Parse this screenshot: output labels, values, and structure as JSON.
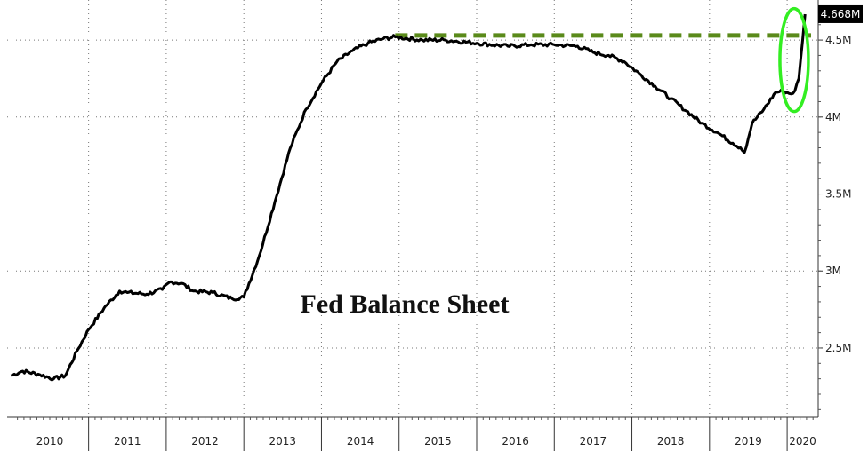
{
  "chart_data": {
    "type": "line",
    "title": "Fed Balance Sheet",
    "xlabel": "",
    "ylabel": "",
    "ylim": [
      2.05,
      4.76
    ],
    "y_ticks": [
      {
        "value": 2.5,
        "label": "2.5M"
      },
      {
        "value": 3.0,
        "label": "3M"
      },
      {
        "value": 3.5,
        "label": "3.5M"
      },
      {
        "value": 4.0,
        "label": "4M"
      },
      {
        "value": 4.5,
        "label": "4.5M"
      }
    ],
    "x_categories": [
      "2010",
      "2011",
      "2012",
      "2013",
      "2014",
      "2015",
      "2016",
      "2017",
      "2018",
      "2019",
      "2020"
    ],
    "last_value_label": "4.668M",
    "reference_level": 4.53,
    "reference_start": 2014.95,
    "highlight_center": [
      2020.09,
      4.37
    ],
    "series": [
      {
        "name": "",
        "x": [
          2010.0,
          2010.15,
          2010.35,
          2010.55,
          2010.7,
          2010.85,
          2011.0,
          2011.2,
          2011.4,
          2011.5,
          2011.75,
          2011.95,
          2012.05,
          2012.2,
          2012.35,
          2012.6,
          2012.85,
          2013.0,
          2013.2,
          2013.4,
          2013.6,
          2013.8,
          2014.0,
          2014.2,
          2014.4,
          2014.6,
          2014.8,
          2014.95,
          2015.3,
          2015.6,
          2016.0,
          2016.4,
          2016.7,
          2017.0,
          2017.3,
          2017.5,
          2017.7,
          2017.9,
          2018.1,
          2018.3,
          2018.5,
          2018.7,
          2018.9,
          2019.1,
          2019.3,
          2019.4,
          2019.45,
          2019.55,
          2019.7,
          2019.85,
          2019.95,
          2020.05,
          2020.1,
          2020.15,
          2020.2,
          2020.23
        ],
        "y": [
          2.32,
          2.35,
          2.33,
          2.3,
          2.32,
          2.48,
          2.62,
          2.76,
          2.87,
          2.86,
          2.85,
          2.88,
          2.93,
          2.92,
          2.87,
          2.86,
          2.82,
          2.83,
          3.1,
          3.45,
          3.8,
          4.05,
          4.22,
          4.36,
          4.43,
          4.48,
          4.51,
          4.52,
          4.5,
          4.5,
          4.48,
          4.46,
          4.47,
          4.47,
          4.46,
          4.42,
          4.4,
          4.36,
          4.28,
          4.2,
          4.12,
          4.04,
          3.96,
          3.9,
          3.83,
          3.8,
          3.77,
          3.96,
          4.05,
          4.16,
          4.17,
          4.15,
          4.17,
          4.25,
          4.5,
          4.668
        ]
      }
    ],
    "grid": "dotted",
    "legend": "none",
    "line_color": "#000000",
    "reference_color": "#5a8a1a",
    "highlight_color": "#33ee22",
    "label_box_color": "#000000"
  }
}
